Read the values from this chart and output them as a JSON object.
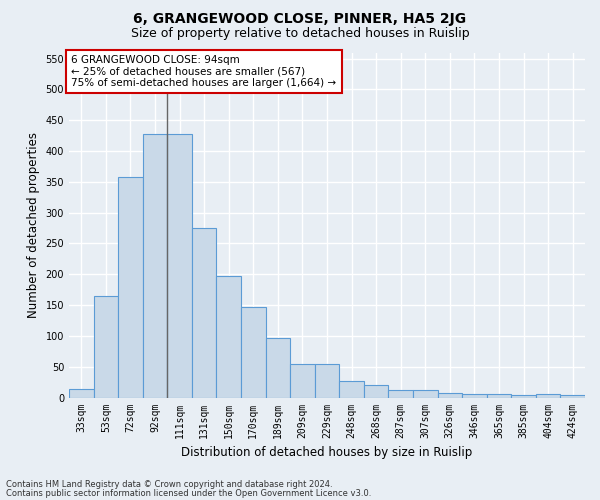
{
  "title": "6, GRANGEWOOD CLOSE, PINNER, HA5 2JG",
  "subtitle": "Size of property relative to detached houses in Ruislip",
  "xlabel": "Distribution of detached houses by size in Ruislip",
  "ylabel": "Number of detached properties",
  "footnote1": "Contains HM Land Registry data © Crown copyright and database right 2024.",
  "footnote2": "Contains public sector information licensed under the Open Government Licence v3.0.",
  "categories": [
    "33sqm",
    "53sqm",
    "72sqm",
    "92sqm",
    "111sqm",
    "131sqm",
    "150sqm",
    "170sqm",
    "189sqm",
    "209sqm",
    "229sqm",
    "248sqm",
    "268sqm",
    "287sqm",
    "307sqm",
    "326sqm",
    "346sqm",
    "365sqm",
    "385sqm",
    "404sqm",
    "424sqm"
  ],
  "values": [
    13,
    165,
    358,
    428,
    428,
    275,
    198,
    147,
    96,
    55,
    55,
    26,
    20,
    12,
    12,
    7,
    5,
    5,
    4,
    5,
    4
  ],
  "bar_color": "#c9d9e8",
  "bar_edge_color": "#5b9bd5",
  "vline_x": 3.5,
  "vline_color": "#666666",
  "annotation_text": "6 GRANGEWOOD CLOSE: 94sqm\n← 25% of detached houses are smaller (567)\n75% of semi-detached houses are larger (1,664) →",
  "annotation_box_color": "#ffffff",
  "annotation_box_edge_color": "#cc0000",
  "ylim": [
    0,
    560
  ],
  "yticks": [
    0,
    50,
    100,
    150,
    200,
    250,
    300,
    350,
    400,
    450,
    500,
    550
  ],
  "background_color": "#e8eef4",
  "grid_color": "#ffffff",
  "title_fontsize": 10,
  "subtitle_fontsize": 9,
  "axis_label_fontsize": 8.5,
  "tick_fontsize": 7,
  "xlabel_fontsize": 8.5,
  "footnote_fontsize": 6,
  "annotation_fontsize": 7.5
}
